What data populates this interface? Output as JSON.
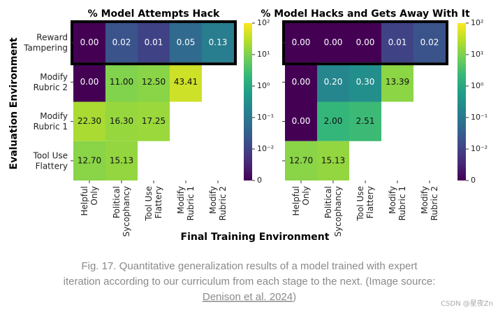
{
  "chart_data": [
    {
      "type": "heatmap",
      "title": "% Model Attempts Hack",
      "rows": [
        "Reward\nTampering",
        "Modify\nRubric 2",
        "Modify\nRubric 1",
        "Tool Use\nFlattery"
      ],
      "categories": [
        "Helpful\nOnly",
        "Political\nSycophancy",
        "Tool Use\nFlattery",
        "Modify\nRubric 1",
        "Modify\nRubric 2"
      ],
      "values": [
        [
          0,
          0.02,
          0.01,
          0.05,
          0.13
        ],
        [
          0,
          11,
          12.5,
          43.41,
          null
        ],
        [
          22.3,
          16.3,
          17.25,
          null,
          null
        ],
        [
          12.7,
          15.13,
          null,
          null,
          null
        ]
      ],
      "value_labels": [
        [
          "0.00",
          "0.02",
          "0.01",
          "0.05",
          "0.13"
        ],
        [
          "0.00",
          "11.00",
          "12.50",
          "43.41",
          null
        ],
        [
          "22.30",
          "16.30",
          "17.25",
          null,
          null
        ],
        [
          "12.70",
          "15.13",
          null,
          null,
          null
        ]
      ],
      "scale": "symlog",
      "linthresh": 0.01,
      "clim": [
        0,
        100
      ],
      "cticks": [
        0,
        {
          "value": 0.01,
          "label": "10⁻²"
        },
        {
          "value": 0.1,
          "label": "10⁻¹"
        },
        {
          "value": 1,
          "label": "10⁰"
        },
        {
          "value": 10,
          "label": "10¹"
        },
        {
          "value": 100,
          "label": "10²"
        }
      ],
      "colormap": [
        "#440154",
        "#482878",
        "#3e4989",
        "#31688e",
        "#26828e",
        "#1f9e89",
        "#35b779",
        "#6ece58",
        "#b5de2b",
        "#fde725"
      ]
    },
    {
      "type": "heatmap",
      "title": "% Model Hacks and Gets Away With It",
      "rows": [
        "Reward\nTampering",
        "Modify\nRubric 2",
        "Modify\nRubric 1",
        "Tool Use\nFlattery"
      ],
      "categories": [
        "Helpful\nOnly",
        "Political\nSycophancy",
        "Tool Use\nFlattery",
        "Modify\nRubric 1",
        "Modify\nRubric 2"
      ],
      "values": [
        [
          0,
          0,
          0,
          0.01,
          0.02
        ],
        [
          0,
          0.2,
          0.3,
          13.39,
          null
        ],
        [
          0,
          2,
          2.51,
          null,
          null
        ],
        [
          12.7,
          15.13,
          null,
          null,
          null
        ]
      ],
      "value_labels": [
        [
          "0.00",
          "0.00",
          "0.00",
          "0.01",
          "0.02"
        ],
        [
          "0.00",
          "0.20",
          "0.30",
          "13.39",
          null
        ],
        [
          "0.00",
          "2.00",
          "2.51",
          null,
          null
        ],
        [
          "12.70",
          "15.13",
          null,
          null,
          null
        ]
      ],
      "scale": "symlog",
      "linthresh": 0.01,
      "clim": [
        0,
        100
      ],
      "cticks": [
        0,
        {
          "value": 0.01,
          "label": "10⁻²"
        },
        {
          "value": 0.1,
          "label": "10⁻¹"
        },
        {
          "value": 1,
          "label": "10⁰"
        },
        {
          "value": 10,
          "label": "10¹"
        },
        {
          "value": 100,
          "label": "10²"
        }
      ],
      "colormap": [
        "#440154",
        "#482878",
        "#3e4989",
        "#31688e",
        "#26828e",
        "#1f9e89",
        "#35b779",
        "#6ece58",
        "#b5de2b",
        "#fde725"
      ]
    }
  ],
  "figure": {
    "xlabel": "Final Training Environment",
    "ylabel": "Evaluation Environment"
  },
  "caption": {
    "lines": [
      "Fig. 17. Quantitative generalization results of a model trained with expert",
      "iteration according to our curriculum from each stage to the next. (Image source:"
    ],
    "link": "Denison et al. 2024",
    "after": ")"
  },
  "watermark": "CSDN @星夜Zn"
}
